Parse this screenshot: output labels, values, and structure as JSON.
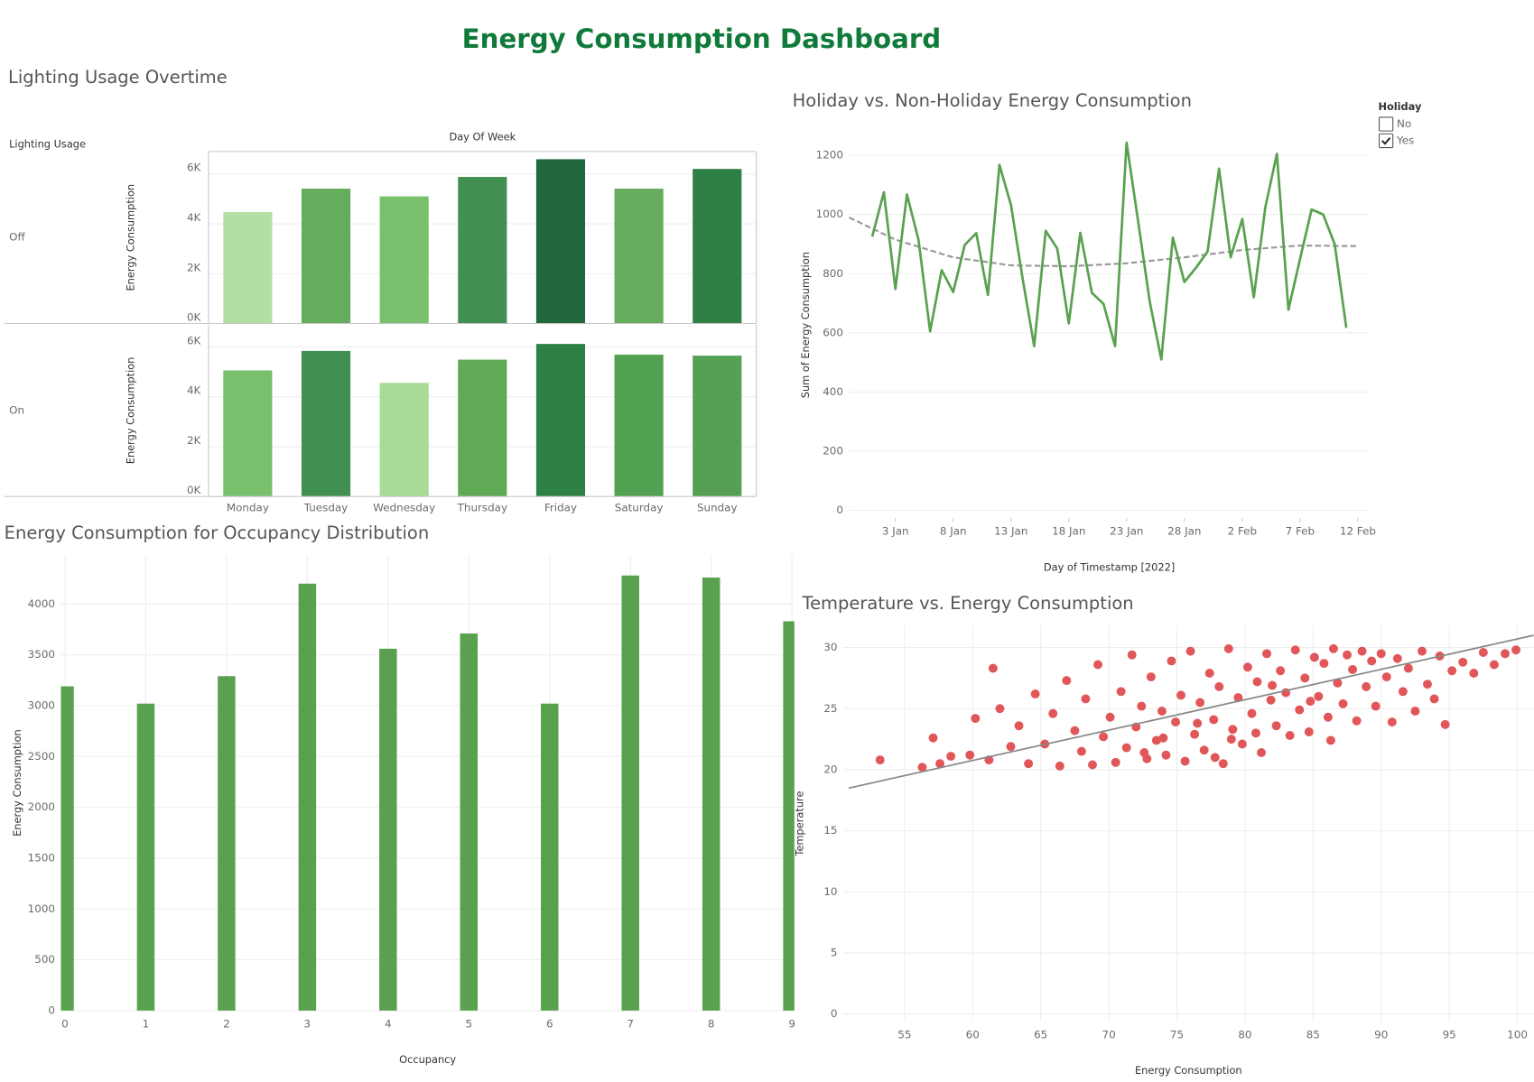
{
  "title": "Energy Consumption Dashboard",
  "chart_data": [
    {
      "type": "bar",
      "title": "Lighting Usage Overtime",
      "row_header": "Lighting Usage",
      "column_header": "Day Of Week",
      "y_label": "Energy Consumption",
      "categories": [
        "Monday",
        "Tuesday",
        "Wednesday",
        "Thursday",
        "Friday",
        "Saturday",
        "Sunday"
      ],
      "series": [
        {
          "name": "Off",
          "values": [
            4470,
            5410,
            5100,
            5880,
            6590,
            5410,
            6200
          ],
          "colors": [
            "#b3dfa5",
            "#65ad5c",
            "#78c06c",
            "#429051",
            "#21683f",
            "#65ad5c",
            "#2e8045"
          ]
        },
        {
          "name": "On",
          "values": [
            5060,
            5840,
            4560,
            5490,
            6120,
            5690,
            5650
          ],
          "colors": [
            "#78c06c",
            "#429051",
            "#a7dc98",
            "#5fa957",
            "#2e8045",
            "#52a052",
            "#55a055"
          ]
        }
      ],
      "ylim": [
        0,
        6900
      ],
      "yticks": [
        {
          "value": 0,
          "label": "0K"
        },
        {
          "value": 2000,
          "label": "2K"
        },
        {
          "value": 4000,
          "label": "4K"
        },
        {
          "value": 6000,
          "label": "6K"
        }
      ],
      "grid": true
    },
    {
      "type": "line",
      "title": "Holiday vs. Non-Holiday Energy Consumption",
      "x_label": "Day of Timestamp [2022]",
      "y_label": "Sum of Energy Consumption",
      "legend": {
        "title": "Holiday",
        "entries": [
          "No",
          "Yes"
        ],
        "checked": [
          false,
          true
        ],
        "position": "top-right"
      },
      "x": [
        "2022-01-01",
        "2022-01-02",
        "2022-01-03",
        "2022-01-04",
        "2022-01-05",
        "2022-01-06",
        "2022-01-07",
        "2022-01-08",
        "2022-01-09",
        "2022-01-10",
        "2022-01-11",
        "2022-01-12",
        "2022-01-13",
        "2022-01-14",
        "2022-01-15",
        "2022-01-16",
        "2022-01-17",
        "2022-01-18",
        "2022-01-19",
        "2022-01-20",
        "2022-01-21",
        "2022-01-22",
        "2022-01-23",
        "2022-01-24",
        "2022-01-25",
        "2022-01-26",
        "2022-01-27",
        "2022-01-28",
        "2022-01-29",
        "2022-01-30",
        "2022-01-31",
        "2022-02-01",
        "2022-02-02",
        "2022-02-03",
        "2022-02-04",
        "2022-02-05",
        "2022-02-06",
        "2022-02-07",
        "2022-02-08",
        "2022-02-09",
        "2022-02-10",
        "2022-02-11"
      ],
      "series": [
        {
          "color": "#59a14f",
          "values": [
            925,
            1075,
            748,
            1068,
            915,
            605,
            812,
            738,
            897,
            937,
            728,
            1168,
            1032,
            785,
            555,
            945,
            885,
            632,
            938,
            735,
            698,
            555,
            1243,
            975,
            705,
            510,
            922,
            772,
            820,
            875,
            1155,
            855,
            985,
            720,
            1025,
            1205,
            678,
            850,
            1017,
            1000,
            900,
            617
          ]
        }
      ],
      "trend": {
        "color": "#999999",
        "x": [
          "2021-12-30",
          "2022-01-03",
          "2022-01-08",
          "2022-01-13",
          "2022-01-18",
          "2022-01-23",
          "2022-01-28",
          "2022-02-02",
          "2022-02-07",
          "2022-02-12"
        ],
        "values": [
          990,
          915,
          855,
          828,
          825,
          835,
          855,
          880,
          895,
          893
        ]
      },
      "xlim": [
        "2021-12-30",
        "2022-02-13"
      ],
      "xticks": [
        {
          "value": "2022-01-03",
          "label": "3 Jan"
        },
        {
          "value": "2022-01-08",
          "label": "8 Jan"
        },
        {
          "value": "2022-01-13",
          "label": "13 Jan"
        },
        {
          "value": "2022-01-18",
          "label": "18 Jan"
        },
        {
          "value": "2022-01-23",
          "label": "23 Jan"
        },
        {
          "value": "2022-01-28",
          "label": "28 Jan"
        },
        {
          "value": "2022-02-02",
          "label": "2 Feb"
        },
        {
          "value": "2022-02-07",
          "label": "7 Feb"
        },
        {
          "value": "2022-02-12",
          "label": "12 Feb"
        }
      ],
      "ylim": [
        -26,
        1279
      ],
      "yticks": [
        0,
        200,
        400,
        600,
        800,
        1000,
        1200
      ],
      "grid": true
    },
    {
      "type": "bar",
      "title": "Energy Consumption for Occupancy Distribution",
      "x_label": "Occupancy",
      "y_label": "Energy Consumption",
      "x": [
        0,
        1,
        2,
        3,
        4,
        5,
        6,
        7,
        8,
        9
      ],
      "values": [
        3190,
        3020,
        3290,
        4200,
        3560,
        3710,
        3020,
        4280,
        4260,
        3830
      ],
      "color": "#59a14f",
      "xlim": [
        -0.05,
        9.03
      ],
      "xticks": [
        0,
        1,
        2,
        3,
        4,
        5,
        6,
        7,
        8,
        9
      ],
      "ylim": [
        0,
        4480
      ],
      "yticks": [
        0,
        500,
        1000,
        1500,
        2000,
        2500,
        3000,
        3500,
        4000
      ],
      "grid": true
    },
    {
      "type": "scatter",
      "title": "Temperature vs. Energy Consumption",
      "x_label": "Energy Consumption",
      "y_label": "Temperature",
      "color": "#e15759",
      "x": [
        53.2,
        56.3,
        57.1,
        57.6,
        58.4,
        59.8,
        60.2,
        61.5,
        61.2,
        62.0,
        62.8,
        63.4,
        64.1,
        64.6,
        65.3,
        65.9,
        66.4,
        66.9,
        67.5,
        68.0,
        68.3,
        68.8,
        69.2,
        69.6,
        70.1,
        70.5,
        70.9,
        71.3,
        71.7,
        72.0,
        72.4,
        72.8,
        73.1,
        73.5,
        73.9,
        74.2,
        74.6,
        74.9,
        75.3,
        75.6,
        76.0,
        76.3,
        76.7,
        77.0,
        77.4,
        77.7,
        78.1,
        78.4,
        78.8,
        79.1,
        79.5,
        79.8,
        80.2,
        80.5,
        80.9,
        81.2,
        81.6,
        81.9,
        82.3,
        82.6,
        83.0,
        83.3,
        83.7,
        84.0,
        84.4,
        84.7,
        85.1,
        85.4,
        85.8,
        86.1,
        86.5,
        86.8,
        87.2,
        87.5,
        87.9,
        88.2,
        88.6,
        88.9,
        89.3,
        89.6,
        90.0,
        90.4,
        90.8,
        91.2,
        91.6,
        92.0,
        92.5,
        93.0,
        93.4,
        93.9,
        94.3,
        94.7,
        95.2,
        96.0,
        96.8,
        97.5,
        98.3,
        99.1,
        99.9,
        79.0,
        76.5,
        74.0,
        72.6,
        77.8,
        80.8,
        82.0,
        84.8,
        86.3
      ],
      "values": [
        20.8,
        20.2,
        22.6,
        20.5,
        21.1,
        21.2,
        24.2,
        28.3,
        20.8,
        25.0,
        21.9,
        23.6,
        20.5,
        26.2,
        22.1,
        24.6,
        20.3,
        27.3,
        23.2,
        21.5,
        25.8,
        20.4,
        28.6,
        22.7,
        24.3,
        20.6,
        26.4,
        21.8,
        29.4,
        23.5,
        25.2,
        20.9,
        27.6,
        22.4,
        24.8,
        21.2,
        28.9,
        23.9,
        26.1,
        20.7,
        29.7,
        22.9,
        25.5,
        21.6,
        27.9,
        24.1,
        26.8,
        20.5,
        29.9,
        23.3,
        25.9,
        22.1,
        28.4,
        24.6,
        27.2,
        21.4,
        29.5,
        25.7,
        23.6,
        28.1,
        26.3,
        22.8,
        29.8,
        24.9,
        27.5,
        23.1,
        29.2,
        26.0,
        28.7,
        24.3,
        29.9,
        27.1,
        25.4,
        29.4,
        28.2,
        24.0,
        29.7,
        26.8,
        28.9,
        25.2,
        29.5,
        27.6,
        23.9,
        29.1,
        26.4,
        28.3,
        24.8,
        29.7,
        27.0,
        25.8,
        29.3,
        23.7,
        28.1,
        28.8,
        27.9,
        29.6,
        28.6,
        29.5,
        29.8,
        22.5,
        23.8,
        22.6,
        21.4,
        21.0,
        23.0,
        26.9,
        25.6,
        22.4
      ],
      "trend": {
        "color": "#888888",
        "x": [
          50.9,
          101.2
        ],
        "values": [
          18.5,
          31.0
        ]
      },
      "xlim": [
        50.5,
        101.2
      ],
      "xticks": [
        55,
        60,
        65,
        70,
        75,
        80,
        85,
        90,
        95,
        100
      ],
      "ylim": [
        -0.6,
        31.8
      ],
      "yticks": [
        0,
        5,
        10,
        15,
        20,
        25,
        30
      ],
      "grid": true
    }
  ]
}
